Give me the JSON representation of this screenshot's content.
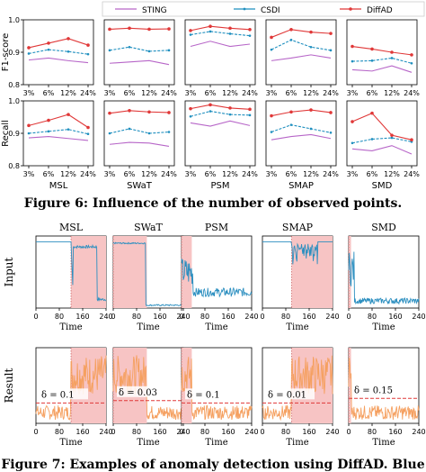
{
  "figure6": {
    "caption": "Figure 6: Influence of the number of observed points.",
    "legend": [
      {
        "name": "STING",
        "color": "#b766c8"
      },
      {
        "name": "CSDI",
        "color": "#1f8fbf"
      },
      {
        "name": "DiffAD",
        "color": "#e03838"
      }
    ],
    "datasets": [
      "MSL",
      "SWaT",
      "PSM",
      "SMAP",
      "SMD"
    ],
    "x_ticks": [
      "3%",
      "6%",
      "12%",
      "24%"
    ],
    "rows": [
      {
        "ylabel": "F1-score",
        "y_ticks": [
          "1.0",
          "0.9",
          "0.8"
        ]
      },
      {
        "ylabel": "Recall",
        "y_ticks": [
          "1.0",
          "0.9",
          "0.8"
        ]
      }
    ]
  },
  "chart_data": [
    {
      "type": "line",
      "title": "MSL",
      "ylabel": "F1-score",
      "categories": [
        "3%",
        "6%",
        "12%",
        "24%"
      ],
      "ylim": [
        0.8,
        1.0
      ],
      "series": [
        {
          "name": "STING",
          "values": [
            0.876,
            0.882,
            0.874,
            0.868
          ]
        },
        {
          "name": "CSDI",
          "values": [
            0.896,
            0.908,
            0.902,
            0.894
          ]
        },
        {
          "name": "DiffAD",
          "values": [
            0.914,
            0.928,
            0.942,
            0.922
          ]
        }
      ]
    },
    {
      "type": "line",
      "title": "SWaT",
      "ylabel": "F1-score",
      "categories": [
        "3%",
        "6%",
        "12%",
        "24%"
      ],
      "ylim": [
        0.8,
        1.0
      ],
      "series": [
        {
          "name": "STING",
          "values": [
            0.866,
            0.87,
            0.874,
            0.862
          ]
        },
        {
          "name": "CSDI",
          "values": [
            0.906,
            0.916,
            0.903,
            0.906
          ]
        },
        {
          "name": "DiffAD",
          "values": [
            0.971,
            0.974,
            0.971,
            0.972
          ]
        }
      ]
    },
    {
      "type": "line",
      "title": "PSM",
      "ylabel": "F1-score",
      "categories": [
        "3%",
        "6%",
        "12%",
        "24%"
      ],
      "ylim": [
        0.8,
        1.0
      ],
      "series": [
        {
          "name": "STING",
          "values": [
            0.918,
            0.934,
            0.918,
            0.925
          ]
        },
        {
          "name": "CSDI",
          "values": [
            0.954,
            0.964,
            0.957,
            0.951
          ]
        },
        {
          "name": "DiffAD",
          "values": [
            0.967,
            0.98,
            0.974,
            0.97
          ]
        }
      ]
    },
    {
      "type": "line",
      "title": "SMAP",
      "ylabel": "F1-score",
      "categories": [
        "3%",
        "6%",
        "12%",
        "24%"
      ],
      "ylim": [
        0.8,
        1.0
      ],
      "series": [
        {
          "name": "STING",
          "values": [
            0.874,
            0.882,
            0.892,
            0.882
          ]
        },
        {
          "name": "CSDI",
          "values": [
            0.908,
            0.938,
            0.916,
            0.906
          ]
        },
        {
          "name": "DiffAD",
          "values": [
            0.946,
            0.97,
            0.962,
            0.958
          ]
        }
      ]
    },
    {
      "type": "line",
      "title": "SMD",
      "ylabel": "F1-score",
      "categories": [
        "3%",
        "6%",
        "12%",
        "24%"
      ],
      "ylim": [
        0.8,
        1.0
      ],
      "series": [
        {
          "name": "STING",
          "values": [
            0.846,
            0.842,
            0.858,
            0.838
          ]
        },
        {
          "name": "CSDI",
          "values": [
            0.872,
            0.874,
            0.882,
            0.866
          ]
        },
        {
          "name": "DiffAD",
          "values": [
            0.918,
            0.91,
            0.9,
            0.892
          ]
        }
      ]
    },
    {
      "type": "line",
      "title": "MSL",
      "ylabel": "Recall",
      "categories": [
        "3%",
        "6%",
        "12%",
        "24%"
      ],
      "ylim": [
        0.8,
        1.0
      ],
      "series": [
        {
          "name": "STING",
          "values": [
            0.886,
            0.89,
            0.884,
            0.878
          ]
        },
        {
          "name": "CSDI",
          "values": [
            0.9,
            0.906,
            0.912,
            0.898
          ]
        },
        {
          "name": "DiffAD",
          "values": [
            0.924,
            0.94,
            0.958,
            0.918
          ]
        }
      ]
    },
    {
      "type": "line",
      "title": "SWaT",
      "ylabel": "Recall",
      "categories": [
        "3%",
        "6%",
        "12%",
        "24%"
      ],
      "ylim": [
        0.8,
        1.0
      ],
      "series": [
        {
          "name": "STING",
          "values": [
            0.866,
            0.872,
            0.87,
            0.86
          ]
        },
        {
          "name": "CSDI",
          "values": [
            0.9,
            0.914,
            0.9,
            0.904
          ]
        },
        {
          "name": "DiffAD",
          "values": [
            0.962,
            0.97,
            0.966,
            0.964
          ]
        }
      ]
    },
    {
      "type": "line",
      "title": "PSM",
      "ylabel": "Recall",
      "categories": [
        "3%",
        "6%",
        "12%",
        "24%"
      ],
      "ylim": [
        0.8,
        1.0
      ],
      "series": [
        {
          "name": "STING",
          "values": [
            0.932,
            0.922,
            0.938,
            0.924
          ]
        },
        {
          "name": "CSDI",
          "values": [
            0.952,
            0.968,
            0.958,
            0.956
          ]
        },
        {
          "name": "DiffAD",
          "values": [
            0.976,
            0.988,
            0.978,
            0.974
          ]
        }
      ]
    },
    {
      "type": "line",
      "title": "SMAP",
      "ylabel": "Recall",
      "categories": [
        "3%",
        "6%",
        "12%",
        "24%"
      ],
      "ylim": [
        0.8,
        1.0
      ],
      "series": [
        {
          "name": "STING",
          "values": [
            0.88,
            0.89,
            0.896,
            0.884
          ]
        },
        {
          "name": "CSDI",
          "values": [
            0.904,
            0.926,
            0.914,
            0.902
          ]
        },
        {
          "name": "DiffAD",
          "values": [
            0.954,
            0.966,
            0.972,
            0.964
          ]
        }
      ]
    },
    {
      "type": "line",
      "title": "SMD",
      "ylabel": "Recall",
      "categories": [
        "3%",
        "6%",
        "12%",
        "24%"
      ],
      "ylim": [
        0.8,
        1.0
      ],
      "series": [
        {
          "name": "STING",
          "values": [
            0.852,
            0.846,
            0.862,
            0.836
          ]
        },
        {
          "name": "CSDI",
          "values": [
            0.87,
            0.882,
            0.886,
            0.874
          ]
        },
        {
          "name": "DiffAD",
          "values": [
            0.936,
            0.962,
            0.894,
            0.88
          ]
        }
      ]
    }
  ],
  "figure7": {
    "caption": "Figure 7: Examples of anomaly detection using DiffAD. Blue",
    "panels": [
      {
        "title": "MSL",
        "anomaly": [
          120,
          240
        ],
        "delta": "δ = 0.1",
        "input_profile": "msl",
        "threshold": 0.45
      },
      {
        "title": "SWaT",
        "anomaly": [
          0,
          115
        ],
        "delta": "δ = 0.03",
        "input_profile": "swat",
        "threshold": 0.5
      },
      {
        "title": "PSM",
        "anomaly": [
          0,
          35
        ],
        "delta": "δ = 0.1",
        "input_profile": "psm",
        "threshold": 0.45
      },
      {
        "title": "SMAP",
        "anomaly": [
          100,
          240
        ],
        "delta": "δ = 0.01",
        "input_profile": "smap",
        "threshold": 0.45
      },
      {
        "title": "SMD",
        "anomaly": [
          0,
          8
        ],
        "delta": "δ = 0.15",
        "input_profile": "smd",
        "threshold": 0.55
      }
    ],
    "row_labels": [
      "Input",
      "Result"
    ],
    "x_ticks": [
      "0",
      "80",
      "160",
      "240"
    ],
    "x_label": "Time",
    "colors": {
      "signal": "#2c8fc0",
      "result": "#f5a060",
      "anomaly_fill": "#f7c4c4",
      "threshold": "#e03838"
    }
  }
}
